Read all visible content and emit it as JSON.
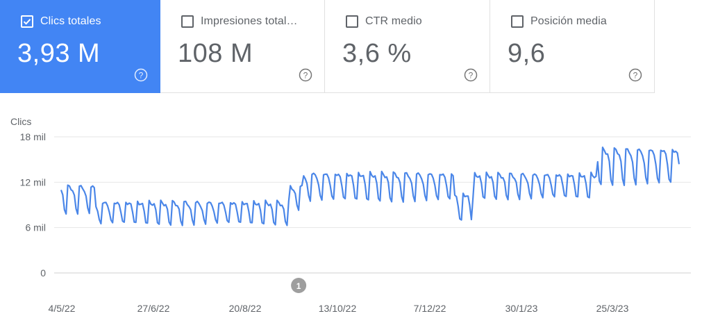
{
  "cards": [
    {
      "label": "Clics totales",
      "value": "3,93 M",
      "checked": true
    },
    {
      "label": "Impresiones total…",
      "value": "108 M",
      "checked": false
    },
    {
      "label": "CTR medio",
      "value": "3,6 %",
      "checked": false
    },
    {
      "label": "Posición media",
      "value": "9,6",
      "checked": false
    }
  ],
  "colors": {
    "accent": "#4285f4",
    "line": "#4a86e8",
    "text": "#5f6368",
    "grid": "#e6e6e6",
    "annotation": "#9e9e9e"
  },
  "chart_data": {
    "type": "line",
    "ylabel": "Clics",
    "yticks": [
      {
        "value": 0,
        "label": "0"
      },
      {
        "value": 6000,
        "label": "6 mil"
      },
      {
        "value": 12000,
        "label": "12 mil"
      },
      {
        "value": 18000,
        "label": "18 mil"
      }
    ],
    "ylim": [
      0,
      18000
    ],
    "xlabels": [
      "4/5/22",
      "27/6/22",
      "20/8/22",
      "13/10/22",
      "7/12/22",
      "30/1/23",
      "25/3/23"
    ],
    "annotation": {
      "label": "1",
      "date": "2022-09-18"
    },
    "x_start": "2022-04-28",
    "x_end": "2023-05-05",
    "segments": [
      {
        "from": "2022-04-28",
        "to": "2022-05-18",
        "high": 11500,
        "low": 8000
      },
      {
        "from": "2022-05-18",
        "to": "2022-09-12",
        "high": 9400,
        "low": 6500
      },
      {
        "from": "2022-09-12",
        "to": "2022-09-20",
        "high": 11500,
        "low": 8500
      },
      {
        "from": "2022-09-20",
        "to": "2022-12-20",
        "high": 13200,
        "low": 9600
      },
      {
        "from": "2022-12-20",
        "to": "2022-12-31",
        "high": 10500,
        "low": 6800
      },
      {
        "from": "2022-12-31",
        "to": "2023-03-16",
        "high": 13100,
        "low": 9900
      },
      {
        "from": "2023-03-16",
        "to": "2023-05-05",
        "high": 16400,
        "low": 11800
      }
    ]
  }
}
